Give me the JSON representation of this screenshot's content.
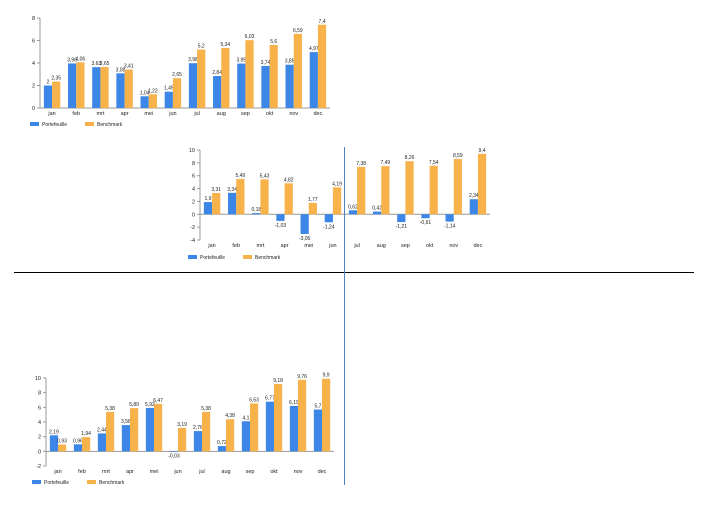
{
  "colors": {
    "portefeuille": "#3b86e6",
    "benchmark": "#f8b24a",
    "axis": "#999999",
    "text": "#222222"
  },
  "chart_data": [
    {
      "type": "bar",
      "categories": [
        "jan",
        "feb",
        "mrt",
        "apr",
        "mei",
        "jun",
        "jul",
        "aug",
        "sep",
        "okt",
        "nov",
        "dec"
      ],
      "ylim": [
        0,
        8
      ],
      "yticks": [
        0,
        2,
        4,
        6,
        8
      ],
      "legend_position": "bottom-left",
      "series": [
        {
          "name": "Portefeuille",
          "values": [
            2,
            3.96,
            3.63,
            3.08,
            1.04,
            1.45,
            3.98,
            2.84,
            3.95,
            3.74,
            3.85,
            4.97
          ],
          "labels": [
            "2",
            "3,96",
            "3,63",
            "3,08",
            "1,04",
            "1,45",
            "3,98",
            "2,84",
            "3,95",
            "3,74",
            "3,85",
            "4,97"
          ]
        },
        {
          "name": "Benchmark",
          "values": [
            2.35,
            4.06,
            3.65,
            3.41,
            1.22,
            2.65,
            5.2,
            5.34,
            6.03,
            5.6,
            6.59,
            7.4
          ],
          "labels": [
            "2,35",
            "4,06",
            "3,65",
            "3,41",
            "1,22",
            "2,65",
            "5,2",
            "5,34",
            "6,03",
            "5,6",
            "6,59",
            "7,4"
          ]
        }
      ]
    },
    {
      "type": "bar",
      "categories": [
        "jan",
        "feb",
        "mrt",
        "apr",
        "mei",
        "jun",
        "jul",
        "aug",
        "sep",
        "okt",
        "nov",
        "dec"
      ],
      "ylim": [
        -4,
        10
      ],
      "yticks": [
        -4,
        -2,
        0,
        2,
        4,
        6,
        8,
        10
      ],
      "legend_position": "bottom-left",
      "series": [
        {
          "name": "Portefeuille",
          "values": [
            1.9,
            3.34,
            0.18,
            -1.03,
            -3.06,
            -1.24,
            0.62,
            0.42,
            -1.21,
            -0.61,
            -1.14,
            2.34
          ],
          "labels": [
            "1,9",
            "3,34",
            "0,18",
            "-1,03",
            "-3,06",
            "-1,24",
            "0,62",
            "0,42",
            "-1,21",
            "-0,61",
            "-1,14",
            "2,34"
          ]
        },
        {
          "name": "Benchmark",
          "values": [
            3.31,
            5.49,
            5.43,
            4.82,
            1.77,
            4.19,
            7.38,
            7.49,
            8.26,
            7.54,
            8.59,
            9.4
          ],
          "labels": [
            "3,31",
            "5,49",
            "5,43",
            "4,82",
            "1,77",
            "4,19",
            "7,38",
            "7,49",
            "8,26",
            "7,54",
            "8,59",
            "9,4"
          ]
        }
      ]
    },
    {
      "type": "bar",
      "categories": [
        "jan",
        "feb",
        "mrt",
        "apr",
        "mei",
        "jun",
        "jul",
        "aug",
        "sep",
        "okt",
        "nov",
        "dec"
      ],
      "ylim": [
        -2,
        10
      ],
      "yticks": [
        -2,
        0,
        2,
        4,
        6,
        8,
        10
      ],
      "legend_position": "bottom-left",
      "series": [
        {
          "name": "Portefeuille",
          "values": [
            2.19,
            0.96,
            2.44,
            3.58,
            5.92,
            -0.03,
            2.76,
            0.72,
            4.1,
            6.77,
            6.19,
            5.7
          ],
          "labels": [
            "2,19",
            "0,96",
            "2,44",
            "3,58",
            "5,92",
            "-0,03",
            "2,76",
            "0,72",
            "4,1",
            "6,77",
            "6,19",
            "5,7"
          ]
        },
        {
          "name": "Benchmark",
          "values": [
            0.93,
            1.94,
            5.38,
            5.89,
            6.47,
            3.19,
            5.38,
            4.38,
            6.53,
            9.18,
            9.76,
            9.9
          ],
          "labels": [
            "0,93",
            "1,94",
            "5,38",
            "5,89",
            "6,47",
            "3,19",
            "5,38",
            "4,38",
            "6,53",
            "9,18",
            "9,76",
            "9,9"
          ]
        }
      ]
    }
  ]
}
